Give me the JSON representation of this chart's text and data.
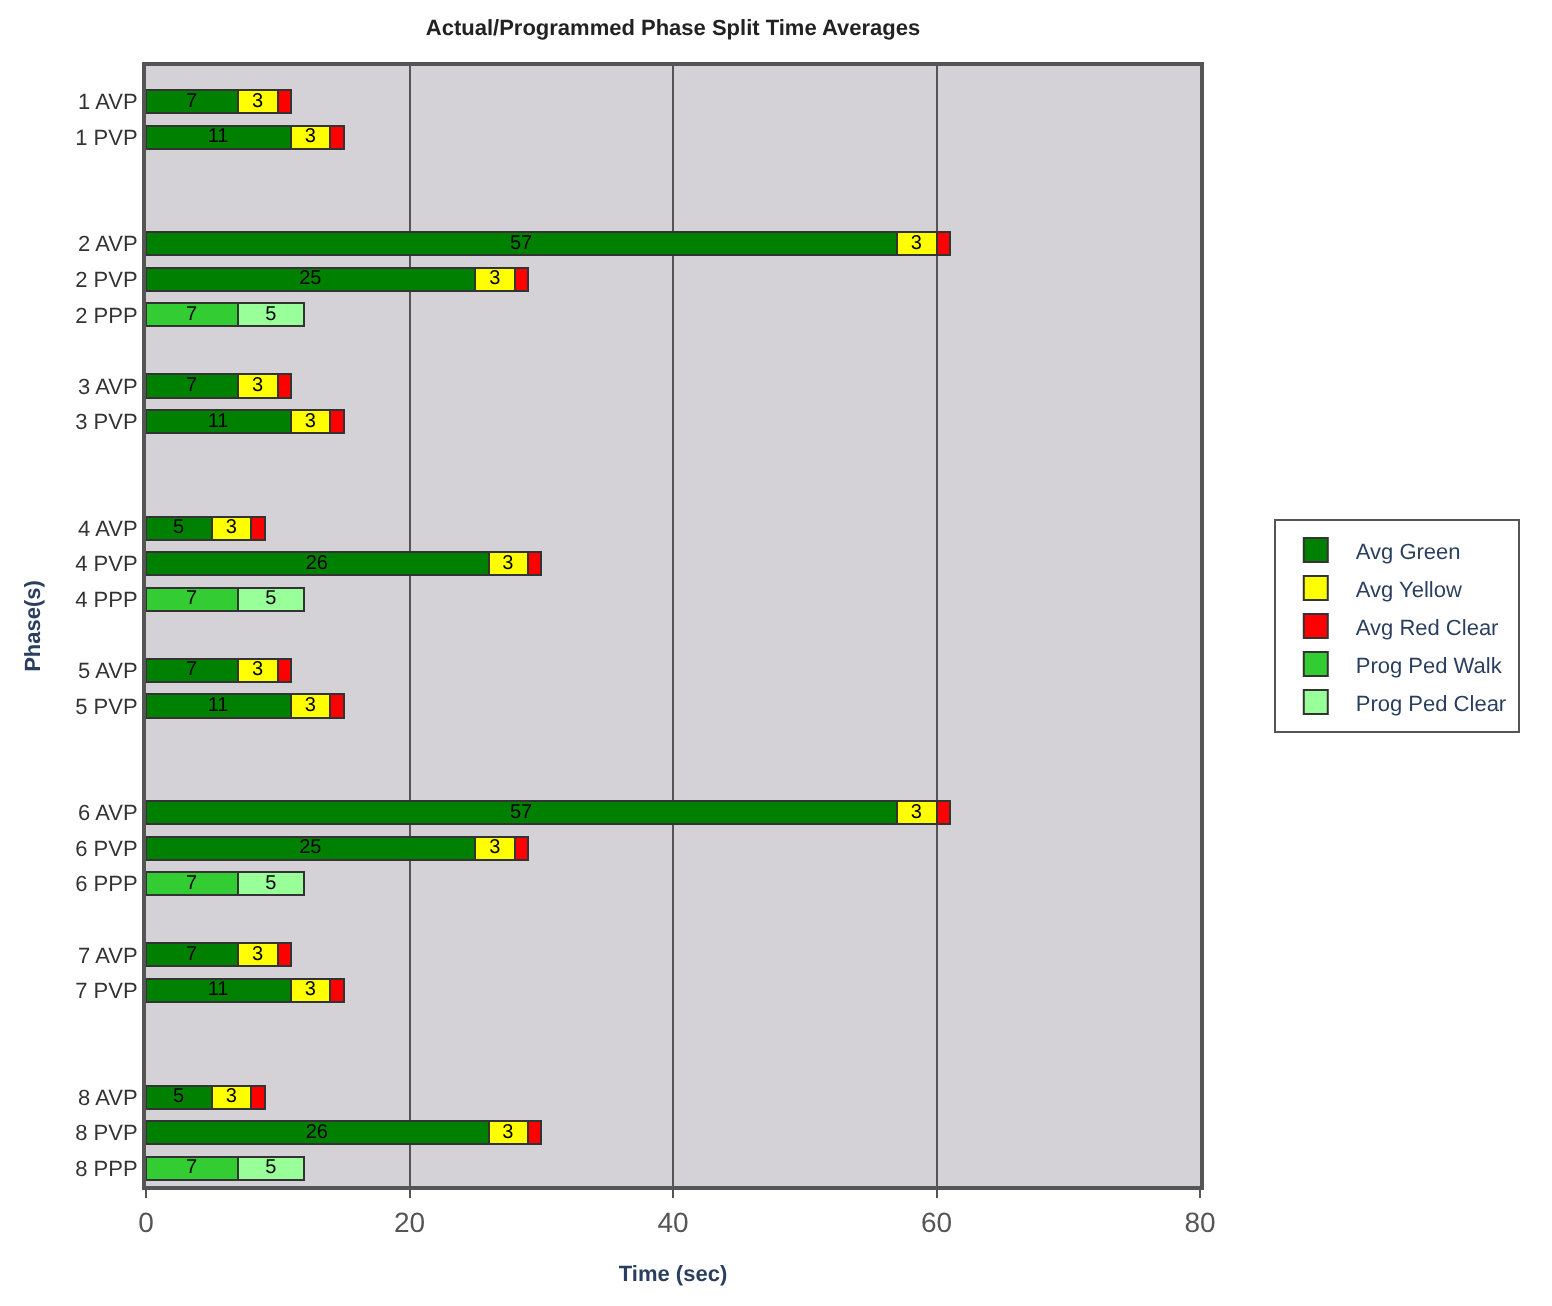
{
  "chart_data": {
    "type": "bar",
    "orientation": "horizontal",
    "stacked": true,
    "title": "Actual/Programmed Phase Split Time Averages",
    "xlabel": "Time (sec)",
    "ylabel": "Phase(s)",
    "categories": [
      "1 AVP",
      "1 PVP",
      null,
      null,
      "2 AVP",
      "2 PVP",
      "2 PPP",
      null,
      "3 AVP",
      "3 PVP",
      null,
      null,
      "4 AVP",
      "4 PVP",
      "4 PPP",
      null,
      "5 AVP",
      "5 PVP",
      null,
      null,
      "6 AVP",
      "6 PVP",
      "6 PPP",
      null,
      "7 AVP",
      "7 PVP",
      null,
      null,
      "8 AVP",
      "8 PVP",
      "8 PPP"
    ],
    "series": [
      {
        "name": "Avg Green",
        "color": "#008000",
        "values": [
          7,
          11,
          null,
          null,
          57,
          25,
          null,
          null,
          7,
          11,
          null,
          null,
          5,
          26,
          null,
          null,
          7,
          11,
          null,
          null,
          57,
          25,
          null,
          null,
          7,
          11,
          null,
          null,
          5,
          26,
          null
        ],
        "value_labels": [
          "7",
          "11",
          null,
          null,
          "57",
          "25",
          null,
          null,
          "7",
          "11",
          null,
          null,
          "5",
          "26",
          null,
          null,
          "7",
          "11",
          null,
          null,
          "57",
          "25",
          null,
          null,
          "7",
          "11",
          null,
          null,
          "5",
          "26",
          null
        ]
      },
      {
        "name": "Avg Yellow",
        "color": "#ffff00",
        "values": [
          3,
          3,
          null,
          null,
          3,
          3,
          null,
          null,
          3,
          3,
          null,
          null,
          3,
          3,
          null,
          null,
          3,
          3,
          null,
          null,
          3,
          3,
          null,
          null,
          3,
          3,
          null,
          null,
          3,
          3,
          null
        ],
        "value_labels": [
          "3",
          "3",
          null,
          null,
          "3",
          "3",
          null,
          null,
          "3",
          "3",
          null,
          null,
          "3",
          "3",
          null,
          null,
          "3",
          "3",
          null,
          null,
          "3",
          "3",
          null,
          null,
          "3",
          "3",
          null,
          null,
          "3",
          "3",
          null
        ]
      },
      {
        "name": "Avg Red Clear",
        "color": "#ff0000",
        "values": [
          1,
          1,
          null,
          null,
          1,
          1,
          null,
          null,
          1,
          1,
          null,
          null,
          1,
          1,
          null,
          null,
          1,
          1,
          null,
          null,
          1,
          1,
          null,
          null,
          1,
          1,
          null,
          null,
          1,
          1,
          null
        ]
      },
      {
        "name": "Prog Ped Walk",
        "color": "#33cc33",
        "values": [
          null,
          null,
          null,
          null,
          null,
          null,
          7,
          null,
          null,
          null,
          null,
          null,
          null,
          null,
          7,
          null,
          null,
          null,
          null,
          null,
          null,
          null,
          7,
          null,
          null,
          null,
          null,
          null,
          null,
          null,
          7
        ],
        "value_labels": [
          null,
          null,
          null,
          null,
          null,
          null,
          "7",
          null,
          null,
          null,
          null,
          null,
          null,
          null,
          "7",
          null,
          null,
          null,
          null,
          null,
          null,
          null,
          "7",
          null,
          null,
          null,
          null,
          null,
          null,
          null,
          "7"
        ]
      },
      {
        "name": "Prog Ped Clear",
        "color": "#99ff99",
        "values": [
          null,
          null,
          null,
          null,
          null,
          null,
          5,
          null,
          null,
          null,
          null,
          null,
          null,
          null,
          5,
          null,
          null,
          null,
          null,
          null,
          null,
          null,
          5,
          null,
          null,
          null,
          null,
          null,
          null,
          null,
          5
        ],
        "value_labels": [
          null,
          null,
          null,
          null,
          null,
          null,
          "5",
          null,
          null,
          null,
          null,
          null,
          null,
          null,
          "5",
          null,
          null,
          null,
          null,
          null,
          null,
          null,
          "5",
          null,
          null,
          null,
          null,
          null,
          null,
          null,
          "5"
        ]
      }
    ],
    "xlim": [
      0,
      80
    ],
    "xticks": [
      0,
      20,
      40,
      60,
      80
    ],
    "grid": "x",
    "legend": "right"
  }
}
